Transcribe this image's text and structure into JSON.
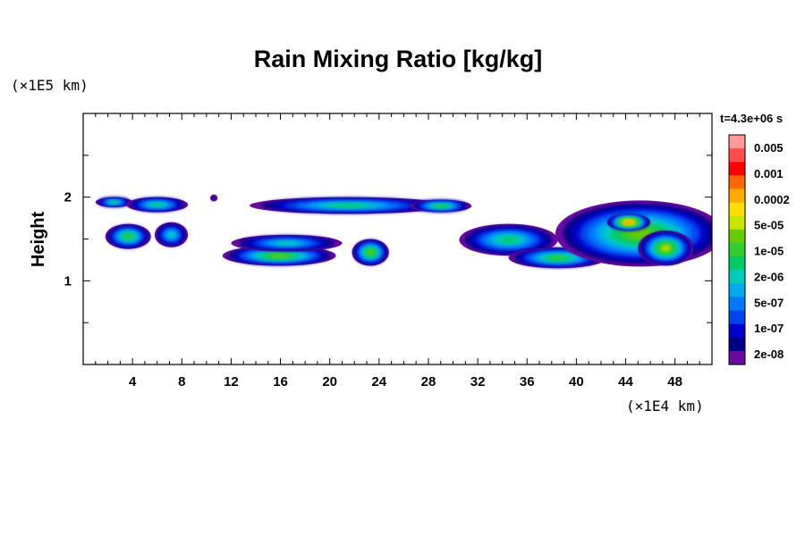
{
  "chart_data": {
    "type": "heatmap",
    "title": "Rain Mixing Ratio [kg/kg]",
    "xlabel": "",
    "ylabel": "Height",
    "x_unit_label": "(×1E4 km)",
    "y_unit_label": "(×1E5 km)",
    "time_label": "t=4.3e+06 s",
    "xlim": [
      0,
      51
    ],
    "ylim": [
      0,
      3
    ],
    "x_ticks": [
      "4",
      "8",
      "12",
      "16",
      "20",
      "24",
      "28",
      "32",
      "36",
      "40",
      "44",
      "48"
    ],
    "x_tick_values": [
      4,
      8,
      12,
      16,
      20,
      24,
      28,
      32,
      36,
      40,
      44,
      48
    ],
    "y_ticks": [
      "1",
      "2"
    ],
    "y_tick_values": [
      1,
      2
    ],
    "colorbar": {
      "labels": [
        "0.005",
        "0.001",
        "0.0002",
        "5e-05",
        "1e-05",
        "2e-06",
        "5e-07",
        "1e-07",
        "2e-08"
      ],
      "colors": [
        "#ff9999",
        "#ff4d4d",
        "#ff0000",
        "#ff6600",
        "#ffaa00",
        "#ffdd00",
        "#c8e600",
        "#66cc00",
        "#33cc33",
        "#00cc66",
        "#00ccbb",
        "#00aaee",
        "#0077ff",
        "#0044ee",
        "#0000cc",
        "#000088",
        "#6a0aa0"
      ]
    },
    "regions": [
      {
        "x": [
          1.0,
          4.0
        ],
        "y": [
          1.88,
          2.0
        ],
        "level": 7
      },
      {
        "x": [
          3.5,
          8.5
        ],
        "y": [
          1.82,
          2.0
        ],
        "level": 7
      },
      {
        "x": [
          10.3,
          10.9
        ],
        "y": [
          1.95,
          2.03
        ],
        "level": 1
      },
      {
        "x": [
          13.5,
          29.5
        ],
        "y": [
          1.8,
          2.0
        ],
        "level": 7
      },
      {
        "x": [
          26.5,
          31.5
        ],
        "y": [
          1.82,
          1.97
        ],
        "level": 8
      },
      {
        "x": [
          1.8,
          5.5
        ],
        "y": [
          1.38,
          1.68
        ],
        "level": 8
      },
      {
        "x": [
          5.8,
          8.5
        ],
        "y": [
          1.4,
          1.7
        ],
        "level": 6
      },
      {
        "x": [
          11.3,
          20.5
        ],
        "y": [
          1.18,
          1.42
        ],
        "level": 9
      },
      {
        "x": [
          12.0,
          21.0
        ],
        "y": [
          1.35,
          1.55
        ],
        "level": 6
      },
      {
        "x": [
          21.8,
          24.8
        ],
        "y": [
          1.18,
          1.5
        ],
        "level": 9
      },
      {
        "x": [
          30.5,
          38.5
        ],
        "y": [
          1.3,
          1.68
        ],
        "level": 7
      },
      {
        "x": [
          34.5,
          42.5
        ],
        "y": [
          1.15,
          1.4
        ],
        "level": 8
      },
      {
        "x": [
          38.3,
          52.0
        ],
        "y": [
          1.17,
          1.96
        ],
        "level": 9
      },
      {
        "x": [
          42.5,
          46.0
        ],
        "y": [
          1.6,
          1.8
        ],
        "level": 13
      },
      {
        "x": [
          45.0,
          49.5
        ],
        "y": [
          1.18,
          1.6
        ],
        "level": 10
      }
    ]
  }
}
